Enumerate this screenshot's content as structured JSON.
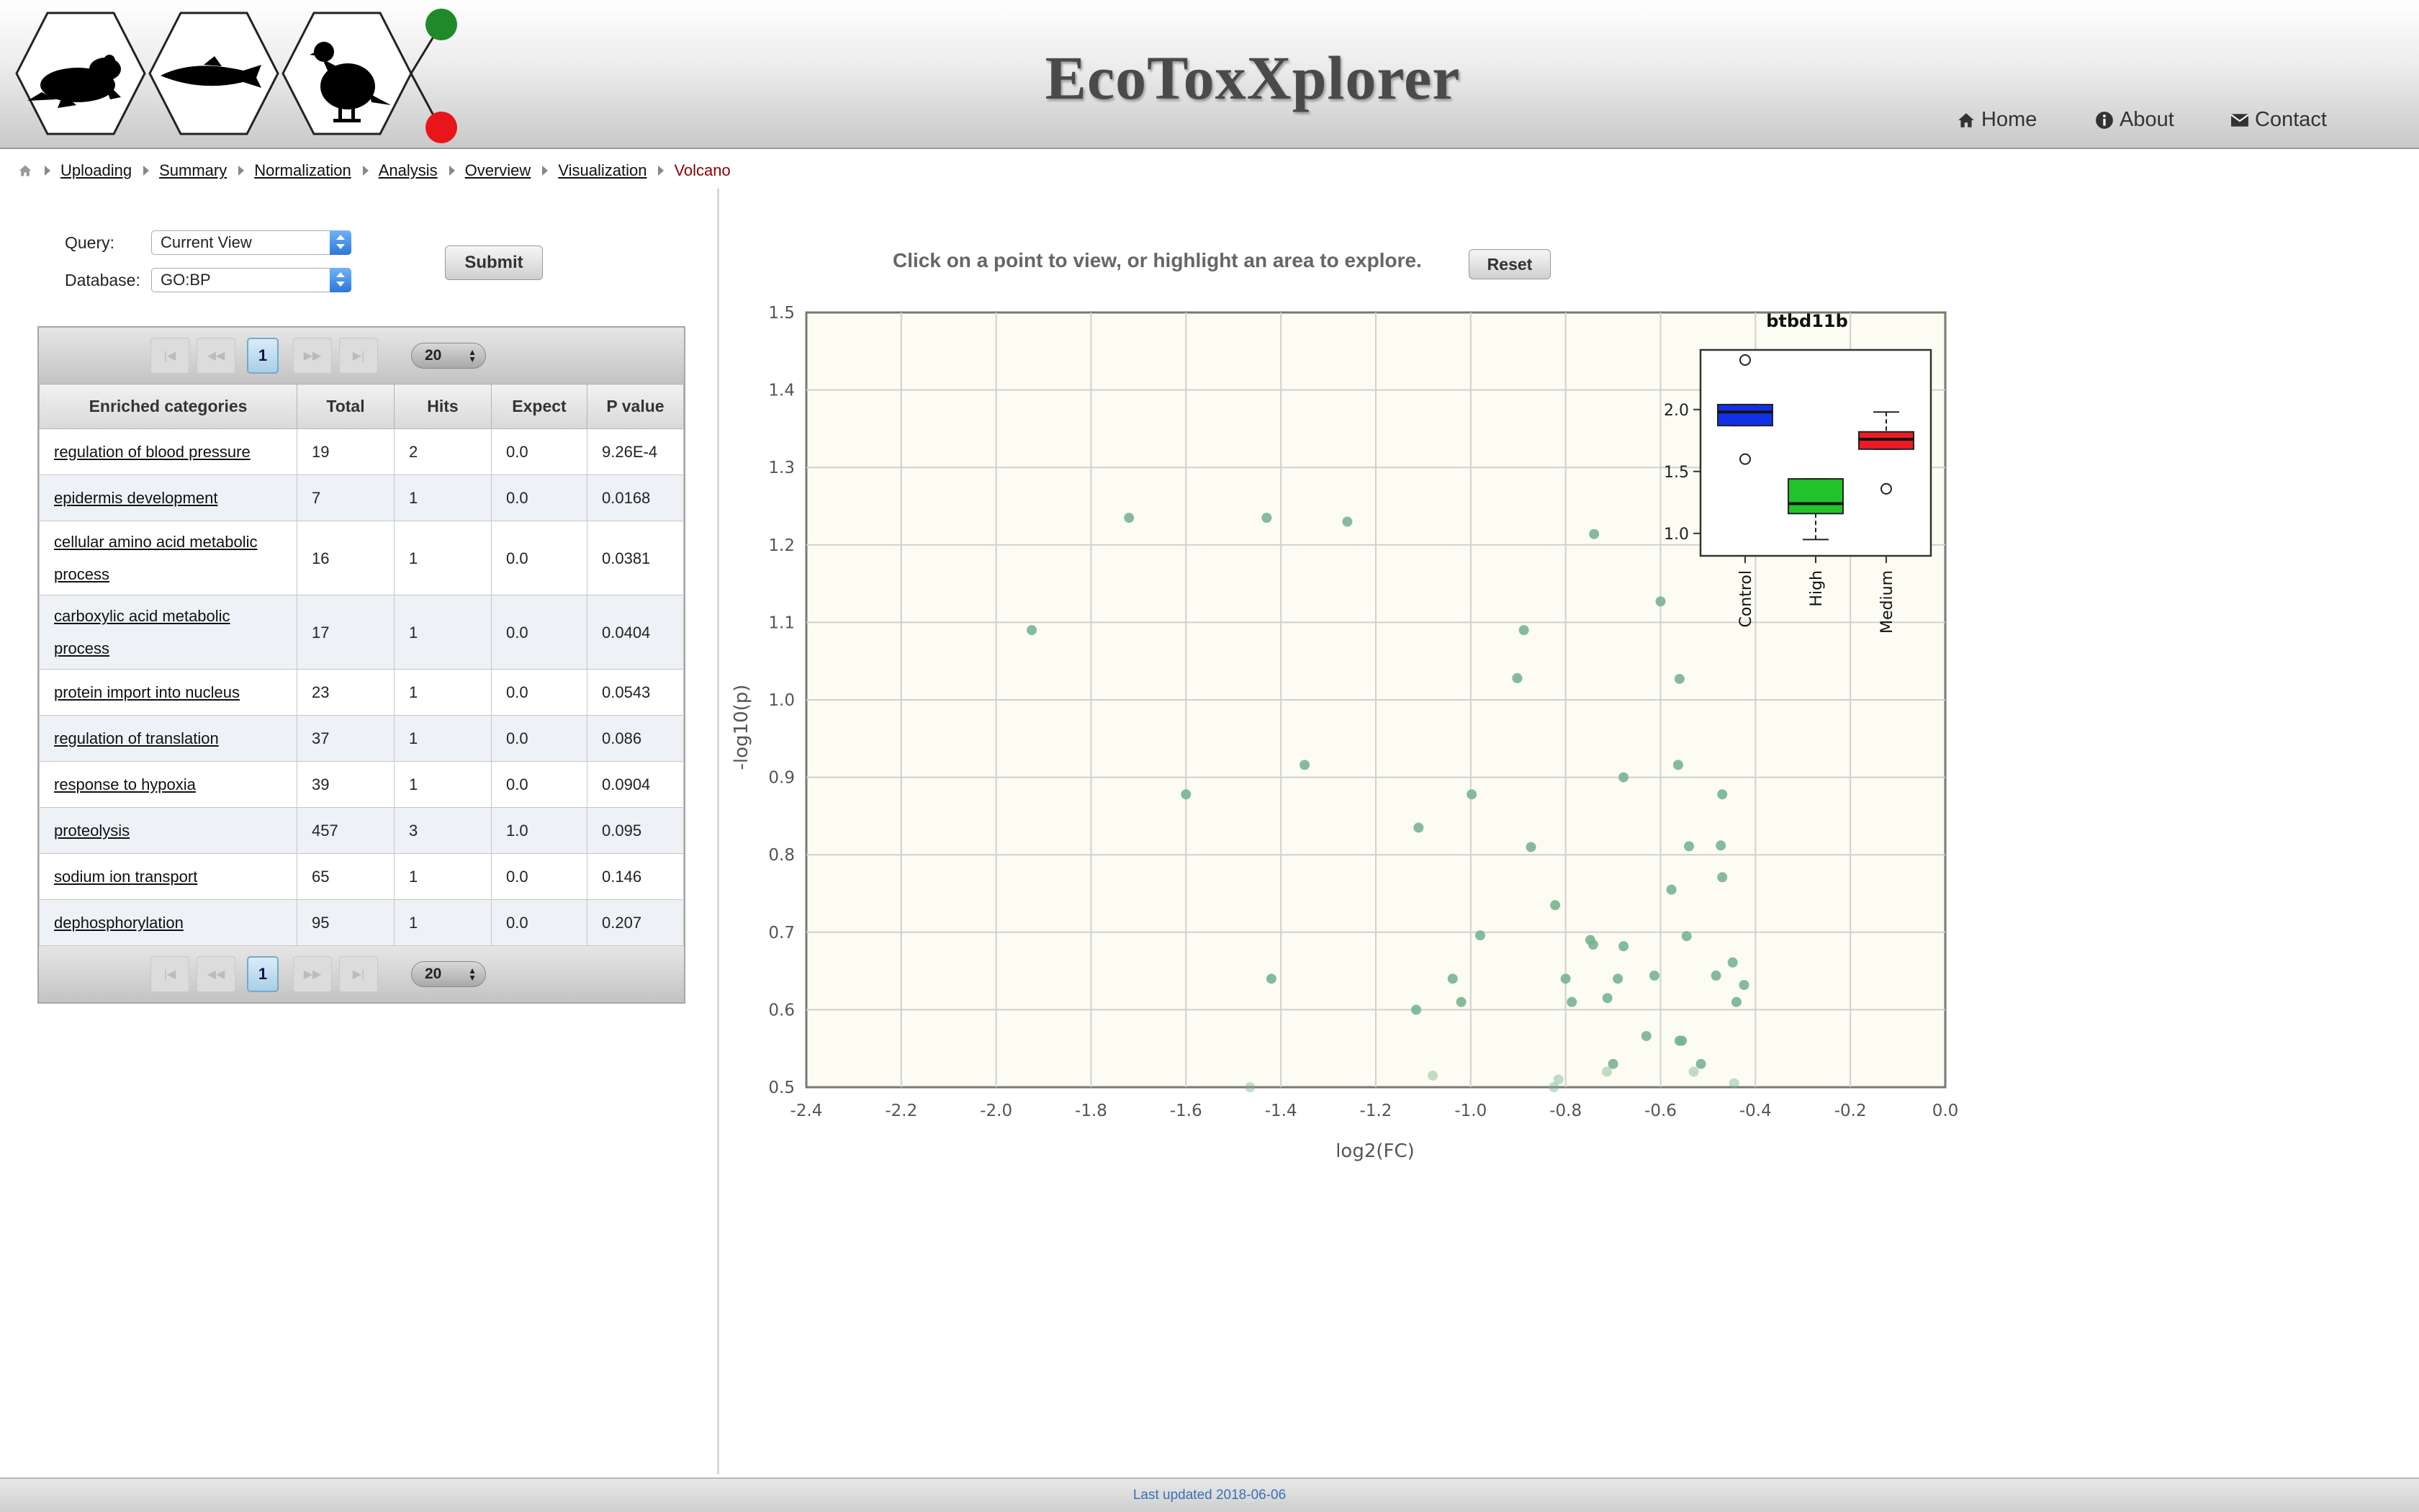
{
  "header": {
    "title": "EcoToxXplorer",
    "nav": [
      {
        "label": "Home",
        "icon": "home-icon"
      },
      {
        "label": "About",
        "icon": "info-icon"
      },
      {
        "label": "Contact",
        "icon": "envelope-icon"
      }
    ],
    "status_colors": {
      "green": "#1f8a2a",
      "red": "#e8151b"
    }
  },
  "breadcrumb": {
    "items": [
      "Uploading",
      "Summary",
      "Normalization",
      "Analysis",
      "Overview",
      "Visualization"
    ],
    "current": "Volcano"
  },
  "query_form": {
    "query_label": "Query:",
    "query_value": "Current View",
    "database_label": "Database:",
    "database_value": "GO:BP",
    "submit_label": "Submit"
  },
  "results_table": {
    "page": "1",
    "page_size": "20",
    "columns": [
      "Enriched categories",
      "Total",
      "Hits",
      "Expect",
      "P value"
    ],
    "rows": [
      [
        "regulation of blood pressure",
        "19",
        "2",
        "0.0",
        "9.26E-4"
      ],
      [
        "epidermis development",
        "7",
        "1",
        "0.0",
        "0.0168"
      ],
      [
        "cellular amino acid metabolic process",
        "16",
        "1",
        "0.0",
        "0.0381"
      ],
      [
        "carboxylic acid metabolic process",
        "17",
        "1",
        "0.0",
        "0.0404"
      ],
      [
        "protein import into nucleus",
        "23",
        "1",
        "0.0",
        "0.0543"
      ],
      [
        "regulation of translation",
        "37",
        "1",
        "0.0",
        "0.086"
      ],
      [
        "response to hypoxia",
        "39",
        "1",
        "0.0",
        "0.0904"
      ],
      [
        "proteolysis",
        "457",
        "3",
        "1.0",
        "0.095"
      ],
      [
        "sodium ion transport",
        "65",
        "1",
        "0.0",
        "0.146"
      ],
      [
        "dephosphorylation",
        "95",
        "1",
        "0.0",
        "0.207"
      ]
    ]
  },
  "volcano": {
    "instruction": "Click on a point to view, or highlight an area to explore.",
    "reset_label": "Reset"
  },
  "chart_data": [
    {
      "type": "scatter",
      "xlabel": "log2(FC)",
      "ylabel": "-log10(p)",
      "xlim": [
        -2.4,
        0.0
      ],
      "ylim": [
        0.5,
        1.5
      ],
      "xticks": [
        "-2.4",
        "-2.2",
        "-2.0",
        "-1.8",
        "-1.6",
        "-1.4",
        "-1.2",
        "-1.0",
        "-0.8",
        "-0.6",
        "-0.4",
        "-0.2",
        "0.0"
      ],
      "yticks": [
        "0.5",
        "0.6",
        "0.7",
        "0.8",
        "0.9",
        "1.0",
        "1.1",
        "1.2",
        "1.3",
        "1.4",
        "1.5"
      ],
      "grid": true,
      "point_color": "#78b491",
      "points": [
        [
          -1.925,
          1.09
        ],
        [
          -1.72,
          1.235
        ],
        [
          -1.43,
          1.235
        ],
        [
          -1.26,
          1.23
        ],
        [
          -1.6,
          0.878
        ],
        [
          -1.35,
          0.916
        ],
        [
          -1.11,
          0.835
        ],
        [
          -0.998,
          0.878
        ],
        [
          -0.74,
          1.214
        ],
        [
          -0.902,
          1.028
        ],
        [
          -0.888,
          1.09
        ],
        [
          -0.873,
          0.81
        ],
        [
          -0.6,
          1.127
        ],
        [
          -0.56,
          1.027
        ],
        [
          -0.563,
          0.916
        ],
        [
          -0.678,
          0.9
        ],
        [
          -0.47,
          0.878
        ],
        [
          -0.54,
          0.811
        ],
        [
          -0.473,
          0.812
        ],
        [
          -0.47,
          0.771
        ],
        [
          -0.577,
          0.755
        ],
        [
          -0.822,
          0.735
        ],
        [
          -0.98,
          0.696
        ],
        [
          -0.545,
          0.695
        ],
        [
          -0.742,
          0.684
        ],
        [
          -0.748,
          0.69
        ],
        [
          -0.678,
          0.682
        ],
        [
          -0.8,
          0.64
        ],
        [
          -0.69,
          0.64
        ],
        [
          -0.613,
          0.644
        ],
        [
          -0.483,
          0.644
        ],
        [
          -0.448,
          0.661
        ],
        [
          -0.424,
          0.632
        ],
        [
          -1.038,
          0.64
        ],
        [
          -1.42,
          0.64
        ],
        [
          -1.115,
          0.6
        ],
        [
          -1.02,
          0.61
        ],
        [
          -0.787,
          0.61
        ],
        [
          -0.712,
          0.615
        ],
        [
          -0.44,
          0.61
        ],
        [
          -0.63,
          0.566
        ],
        [
          -0.56,
          0.56
        ],
        [
          -0.555,
          0.56
        ],
        [
          -0.7,
          0.53
        ],
        [
          -0.515,
          0.53
        ],
        [
          -0.713,
          0.52
        ],
        [
          -0.53,
          0.52
        ],
        [
          -0.445,
          0.505
        ],
        [
          -1.08,
          0.515
        ],
        [
          -0.815,
          0.51
        ],
        [
          -0.825,
          0.5
        ],
        [
          -1.465,
          0.5
        ]
      ]
    },
    {
      "type": "box",
      "title": "btbd11b",
      "ylim": [
        0.9,
        2.4
      ],
      "yticks": [
        "1.0",
        "1.5",
        "2.0"
      ],
      "categories": [
        "Control",
        "High",
        "Medium"
      ],
      "colors": [
        "#1230e6",
        "#22c22a",
        "#ec1c24"
      ],
      "boxes": [
        {
          "min": 1.87,
          "q1": 1.87,
          "median": 1.98,
          "q3": 2.04,
          "max": 2.04,
          "outliers": [
            2.4,
            1.6
          ]
        },
        {
          "min": 0.95,
          "q1": 1.16,
          "median": 1.24,
          "q3": 1.44,
          "max": 1.44,
          "outliers": []
        },
        {
          "min": 1.68,
          "q1": 1.68,
          "median": 1.76,
          "q3": 1.82,
          "max": 1.98,
          "outliers": [
            1.36
          ]
        }
      ]
    }
  ],
  "footer": {
    "updated": "Last updated 2018-06-06"
  }
}
